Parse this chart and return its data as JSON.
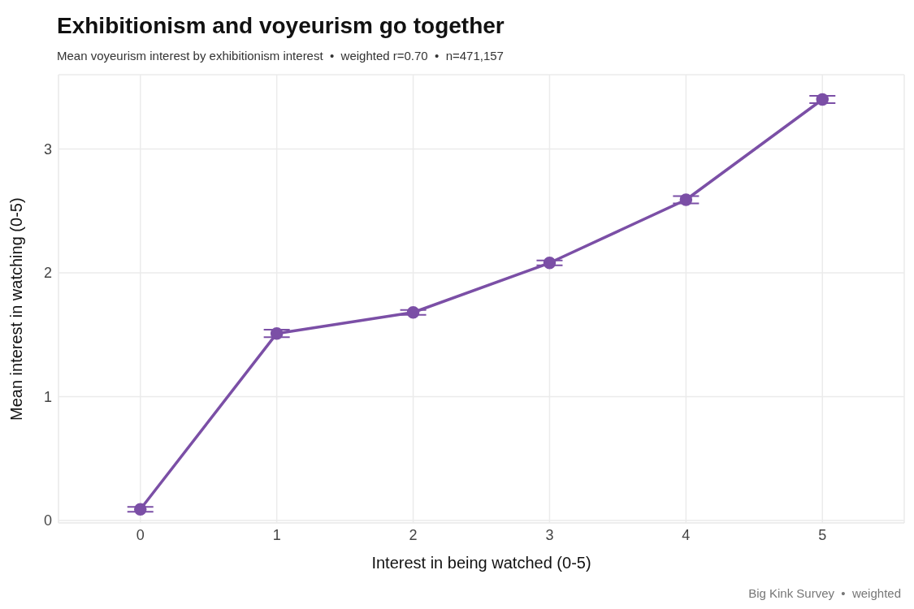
{
  "chart_data": {
    "type": "line",
    "title": "Exhibitionism and voyeurism go together",
    "subtitle": "Mean voyeurism interest by exhibitionism interest  •  weighted r=0.70  •  n=471,157",
    "xlabel": "Interest in being watched (0-5)",
    "ylabel": "Mean interest in watching (0-5)",
    "x": [
      0,
      1,
      2,
      3,
      4,
      5
    ],
    "series": [
      {
        "color": "#7b4fa6",
        "values": [
          0.09,
          1.51,
          1.68,
          2.08,
          2.59,
          3.4
        ],
        "errors": [
          0.02,
          0.03,
          0.02,
          0.02,
          0.03,
          0.03
        ]
      }
    ],
    "xlim": [
      -0.6,
      5.6
    ],
    "xticks": [
      0,
      1,
      2,
      3,
      4,
      5
    ],
    "ylim": [
      -0.02,
      3.6
    ],
    "yticks": [
      0,
      1,
      2,
      3
    ],
    "grid": true,
    "marker": "circle",
    "line_style": "solid",
    "annotations": [
      "Big Kink Survey  •  weighted"
    ]
  }
}
